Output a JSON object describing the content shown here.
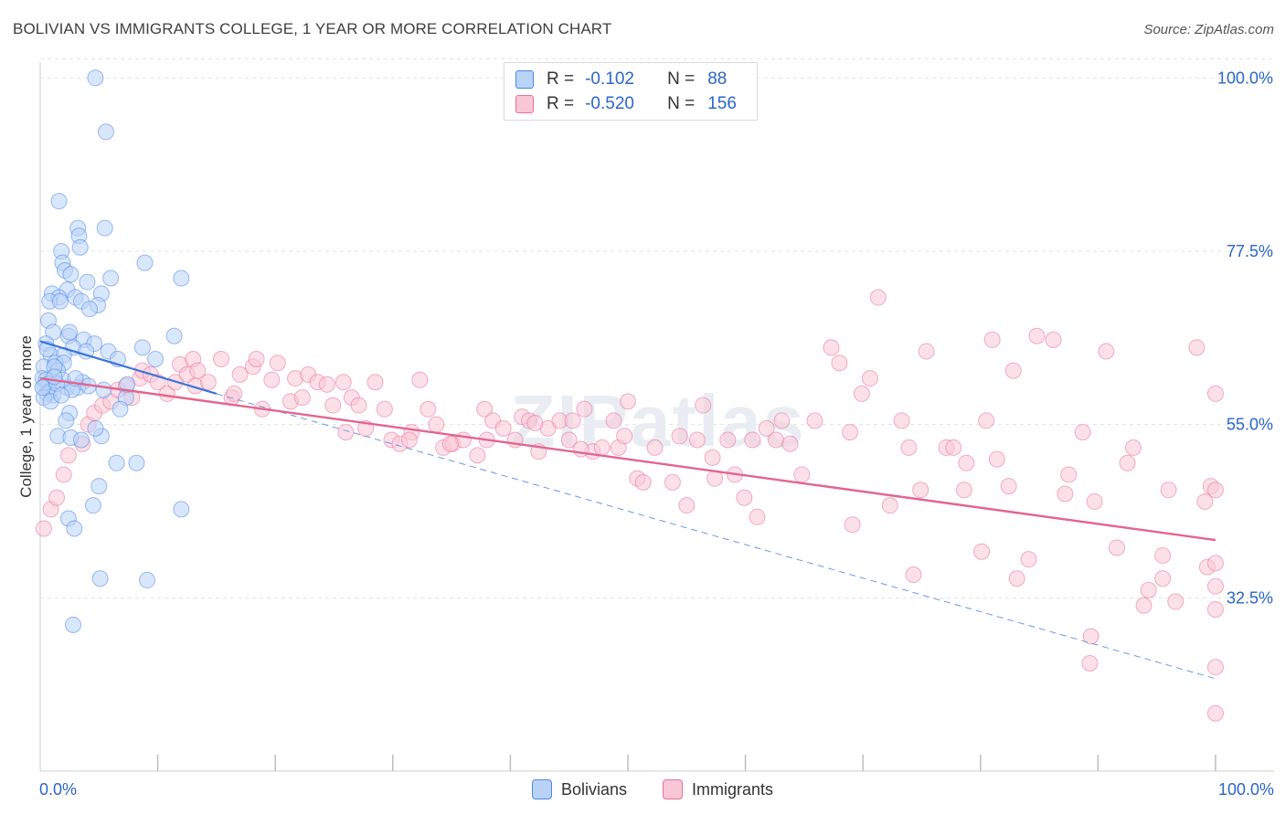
{
  "title": "BOLIVIAN VS IMMIGRANTS COLLEGE, 1 YEAR OR MORE CORRELATION CHART",
  "source": "Source: ZipAtlas.com",
  "watermark": "ZIPatlas",
  "legend": {
    "r_label": "R =",
    "n_label": "N =",
    "rows": [
      {
        "r": "-0.102",
        "n": "88",
        "color": "#4a86e8",
        "fill": "#b9d3f7"
      },
      {
        "r": "-0.520",
        "n": "156",
        "color": "#e8709a",
        "fill": "#f9c6d6"
      }
    ]
  },
  "bottom_legend": [
    {
      "label": "Bolivians",
      "color": "#4a86e8",
      "fill": "#b9d3f7"
    },
    {
      "label": "Immigrants",
      "color": "#e8709a",
      "fill": "#f9c6d6"
    }
  ],
  "chart_data": {
    "type": "scatter",
    "title": "BOLIVIAN VS IMMIGRANTS COLLEGE, 1 YEAR OR MORE CORRELATION CHART",
    "xlabel": "",
    "ylabel": "College, 1 year or more",
    "xlim": [
      0,
      100
    ],
    "ylim": [
      10,
      103
    ],
    "x_tick_labels": [
      "0.0%",
      "100.0%"
    ],
    "y_ticks": [
      32.5,
      55.0,
      77.5,
      100.0
    ],
    "y_tick_labels": [
      "32.5%",
      "55.0%",
      "77.5%",
      "100.0%"
    ],
    "grid": true,
    "legend_position": "top-center",
    "series": [
      {
        "name": "Bolivians",
        "color": "#4a86e8",
        "trend": {
          "x0": 0,
          "y0": 65.8,
          "x1": 15,
          "y1": 59.0,
          "extend_dashed_to": {
            "x": 100,
            "y": 22.0
          }
        },
        "points": [
          [
            4.7,
            100
          ],
          [
            5.6,
            93
          ],
          [
            1.6,
            84
          ],
          [
            3.2,
            80.5
          ],
          [
            5.5,
            80.5
          ],
          [
            1.8,
            77.5
          ],
          [
            3.3,
            79.5
          ],
          [
            3.4,
            78
          ],
          [
            1.9,
            76
          ],
          [
            2.1,
            75
          ],
          [
            2.6,
            74.5
          ],
          [
            6.0,
            74
          ],
          [
            8.9,
            76
          ],
          [
            12.0,
            74
          ],
          [
            4.0,
            73.5
          ],
          [
            2.3,
            72.5
          ],
          [
            1.0,
            72
          ],
          [
            1.6,
            71.5
          ],
          [
            3.0,
            71.5
          ],
          [
            5.2,
            72
          ],
          [
            0.8,
            71
          ],
          [
            1.7,
            71
          ],
          [
            3.5,
            71
          ],
          [
            4.9,
            70.5
          ],
          [
            4.2,
            70
          ],
          [
            0.7,
            68.5
          ],
          [
            1.1,
            67
          ],
          [
            2.4,
            66.5
          ],
          [
            3.7,
            66
          ],
          [
            11.4,
            66.5
          ],
          [
            0.5,
            65.5
          ],
          [
            2.8,
            65
          ],
          [
            4.6,
            65.5
          ],
          [
            8.7,
            65
          ],
          [
            3.9,
            64.5
          ],
          [
            5.8,
            64.5
          ],
          [
            0.9,
            64
          ],
          [
            2.0,
            64
          ],
          [
            6.6,
            63.5
          ],
          [
            9.8,
            63.5
          ],
          [
            0.3,
            62.5
          ],
          [
            1.3,
            63
          ],
          [
            2.0,
            63
          ],
          [
            0.2,
            61
          ],
          [
            0.5,
            60.8
          ],
          [
            0.7,
            60.3
          ],
          [
            0.4,
            60
          ],
          [
            3.6,
            60.5
          ],
          [
            2.3,
            59.8
          ],
          [
            3.2,
            59.8
          ],
          [
            0.8,
            59.3
          ],
          [
            0.6,
            59
          ],
          [
            1.1,
            58.8
          ],
          [
            2.7,
            59.5
          ],
          [
            0.3,
            58.5
          ],
          [
            5.4,
            59.5
          ],
          [
            7.3,
            58.5
          ],
          [
            6.8,
            57
          ],
          [
            2.5,
            56.5
          ],
          [
            1.5,
            53.5
          ],
          [
            2.6,
            53.3
          ],
          [
            3.5,
            53
          ],
          [
            5.2,
            53.5
          ],
          [
            4.7,
            54.5
          ],
          [
            6.5,
            50
          ],
          [
            8.2,
            50
          ],
          [
            5.0,
            47
          ],
          [
            4.5,
            44.5
          ],
          [
            12.0,
            44
          ],
          [
            2.4,
            42.8
          ],
          [
            2.9,
            41.5
          ],
          [
            5.1,
            35
          ],
          [
            9.1,
            34.8
          ],
          [
            2.8,
            29
          ],
          [
            1.5,
            62
          ],
          [
            1.2,
            62.5
          ],
          [
            0.2,
            59.8
          ],
          [
            2.2,
            55.5
          ],
          [
            1.9,
            60.8
          ],
          [
            4.1,
            60
          ],
          [
            3.0,
            61
          ],
          [
            0.6,
            64.8
          ],
          [
            2.5,
            67
          ],
          [
            7.4,
            60.2
          ],
          [
            0.9,
            58
          ],
          [
            1.4,
            60.3
          ],
          [
            1.2,
            61.2
          ],
          [
            1.8,
            58.8
          ]
        ]
      },
      {
        "name": "Immigrants",
        "color": "#e8709a",
        "trend": {
          "x0": 0,
          "y0": 61.0,
          "x1": 100,
          "y1": 40.0
        },
        "points": [
          [
            0.3,
            41.5
          ],
          [
            0.9,
            44
          ],
          [
            1.4,
            45.5
          ],
          [
            2.0,
            48.5
          ],
          [
            2.4,
            51
          ],
          [
            3.6,
            52.5
          ],
          [
            4.1,
            55
          ],
          [
            4.6,
            56.5
          ],
          [
            5.3,
            57.5
          ],
          [
            6.0,
            58
          ],
          [
            6.6,
            59.5
          ],
          [
            7.3,
            60
          ],
          [
            7.8,
            58.5
          ],
          [
            8.5,
            61
          ],
          [
            8.7,
            62
          ],
          [
            9.4,
            61.5
          ],
          [
            10.0,
            60.5
          ],
          [
            10.8,
            59
          ],
          [
            11.5,
            60.5
          ],
          [
            11.9,
            62.8
          ],
          [
            12.5,
            61.5
          ],
          [
            13.0,
            63.5
          ],
          [
            13.2,
            60
          ],
          [
            14.3,
            60.5
          ],
          [
            15.4,
            63.5
          ],
          [
            16.3,
            58.5
          ],
          [
            17.0,
            61.5
          ],
          [
            18.1,
            62.5
          ],
          [
            18.9,
            57
          ],
          [
            19.7,
            60.8
          ],
          [
            20.2,
            63
          ],
          [
            21.3,
            58
          ],
          [
            21.7,
            61
          ],
          [
            22.3,
            58.5
          ],
          [
            22.8,
            61.5
          ],
          [
            23.6,
            60.5
          ],
          [
            24.4,
            60.2
          ],
          [
            24.9,
            57.5
          ],
          [
            25.8,
            60.5
          ],
          [
            26.5,
            58.5
          ],
          [
            27.1,
            57.5
          ],
          [
            27.7,
            54.5
          ],
          [
            28.5,
            60.5
          ],
          [
            29.3,
            57
          ],
          [
            29.9,
            53
          ],
          [
            30.6,
            52.5
          ],
          [
            31.6,
            54
          ],
          [
            32.3,
            60.8
          ],
          [
            33.0,
            57
          ],
          [
            33.7,
            55
          ],
          [
            34.3,
            52
          ],
          [
            35.1,
            52.5
          ],
          [
            36.0,
            53
          ],
          [
            37.2,
            51
          ],
          [
            37.8,
            57
          ],
          [
            38.5,
            55.5
          ],
          [
            39.4,
            54.5
          ],
          [
            40.4,
            53
          ],
          [
            41.0,
            56
          ],
          [
            41.6,
            55.5
          ],
          [
            42.4,
            51.5
          ],
          [
            43.2,
            54.5
          ],
          [
            44.2,
            55.5
          ],
          [
            45.0,
            53
          ],
          [
            45.3,
            55.5
          ],
          [
            46.3,
            57
          ],
          [
            47.0,
            51.5
          ],
          [
            47.8,
            52
          ],
          [
            48.8,
            55.5
          ],
          [
            49.2,
            52
          ],
          [
            50.0,
            58
          ],
          [
            50.8,
            48
          ],
          [
            51.3,
            47.5
          ],
          [
            52.3,
            52
          ],
          [
            53.8,
            47.5
          ],
          [
            54.4,
            53.5
          ],
          [
            55.0,
            44.5
          ],
          [
            55.9,
            53
          ],
          [
            56.4,
            57.5
          ],
          [
            57.4,
            48
          ],
          [
            58.5,
            53
          ],
          [
            59.1,
            48.5
          ],
          [
            59.9,
            45.5
          ],
          [
            60.6,
            53
          ],
          [
            61.0,
            43
          ],
          [
            62.6,
            53
          ],
          [
            63.1,
            55.5
          ],
          [
            63.8,
            52.5
          ],
          [
            64.8,
            48.5
          ],
          [
            65.9,
            55.5
          ],
          [
            67.3,
            65
          ],
          [
            68.0,
            63
          ],
          [
            68.9,
            54
          ],
          [
            69.1,
            42
          ],
          [
            69.9,
            59
          ],
          [
            70.6,
            61
          ],
          [
            71.3,
            71.5
          ],
          [
            72.3,
            44.5
          ],
          [
            73.3,
            55.5
          ],
          [
            73.9,
            52
          ],
          [
            74.3,
            35.5
          ],
          [
            74.9,
            46.5
          ],
          [
            75.4,
            64.5
          ],
          [
            77.1,
            52
          ],
          [
            77.7,
            52
          ],
          [
            78.8,
            50
          ],
          [
            78.6,
            46.5
          ],
          [
            80.1,
            38.5
          ],
          [
            80.5,
            55.5
          ],
          [
            81.0,
            66
          ],
          [
            81.4,
            50.5
          ],
          [
            82.4,
            47
          ],
          [
            82.8,
            62
          ],
          [
            83.1,
            35
          ],
          [
            84.1,
            37.5
          ],
          [
            84.8,
            66.5
          ],
          [
            86.2,
            66
          ],
          [
            87.2,
            46
          ],
          [
            87.5,
            48.5
          ],
          [
            88.7,
            54
          ],
          [
            89.3,
            24
          ],
          [
            89.4,
            27.5
          ],
          [
            89.7,
            45
          ],
          [
            90.7,
            64.5
          ],
          [
            91.6,
            39
          ],
          [
            92.5,
            50
          ],
          [
            93.0,
            52
          ],
          [
            93.9,
            31.5
          ],
          [
            94.3,
            33.5
          ],
          [
            95.5,
            35
          ],
          [
            95.5,
            38
          ],
          [
            96.0,
            46.5
          ],
          [
            96.6,
            32
          ],
          [
            98.4,
            65
          ],
          [
            99.1,
            45
          ],
          [
            99.3,
            36.5
          ],
          [
            99.6,
            47
          ],
          [
            100,
            31
          ],
          [
            100,
            23.5
          ],
          [
            100,
            17.5
          ],
          [
            100,
            37
          ],
          [
            100,
            34
          ],
          [
            100,
            46.5
          ],
          [
            100,
            59
          ],
          [
            13.4,
            62
          ],
          [
            16.5,
            59
          ],
          [
            18.4,
            63.5
          ],
          [
            26.0,
            54
          ],
          [
            31.4,
            53
          ],
          [
            34.9,
            52.5
          ],
          [
            38.0,
            53
          ],
          [
            42.1,
            55.2
          ],
          [
            46.0,
            51.8
          ],
          [
            49.7,
            53.5
          ],
          [
            57.2,
            50.7
          ],
          [
            61.8,
            54.5
          ]
        ]
      }
    ]
  }
}
